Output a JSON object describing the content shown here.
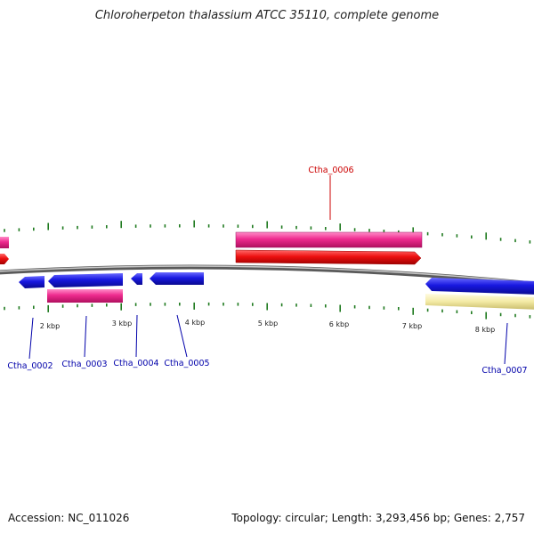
{
  "title": "Chloroherpeton thalassium ATCC 35110, complete genome",
  "footer": {
    "accession": "Accession: NC_011026",
    "summary": "Topology: circular; Length: 3,293,456 bp; Genes: 2,757"
  },
  "colors": {
    "forward_cds": "#ee1111",
    "forward_gene": "#ee2a8e",
    "reverse_cds": "#1818e0",
    "reverse_gene": "#f3eaa4",
    "backbone": "#8c8c8c",
    "tick": "#1f7a1f",
    "forward_label": "#cc0000",
    "reverse_label": "#0000aa"
  },
  "scale_labels": [
    "2 kbp",
    "3 kbp",
    "4 kbp",
    "5 kbp",
    "6 kbp",
    "7 kbp",
    "8 kbp"
  ],
  "genes": [
    {
      "id": "Ctha_0002",
      "strand": "reverse"
    },
    {
      "id": "Ctha_0003",
      "strand": "reverse"
    },
    {
      "id": "Ctha_0004",
      "strand": "reverse"
    },
    {
      "id": "Ctha_0005",
      "strand": "reverse"
    },
    {
      "id": "Ctha_0006",
      "strand": "forward"
    },
    {
      "id": "Ctha_0007",
      "strand": "reverse"
    }
  ]
}
